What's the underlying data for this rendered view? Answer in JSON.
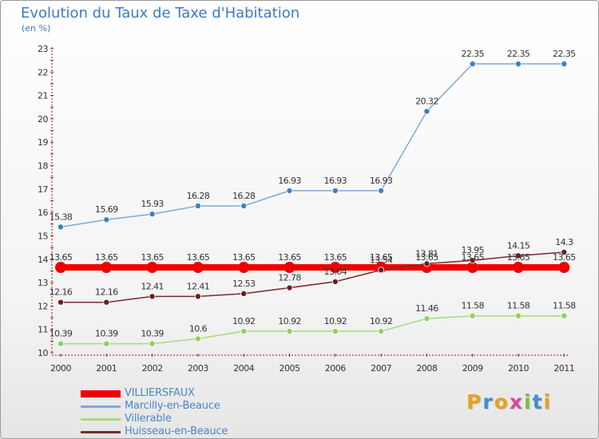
{
  "header": {
    "title": "Evolution du Taux de Taxe d'Habitation",
    "subtitle": "(en %)"
  },
  "logo": {
    "text": "Proxiti",
    "colors": [
      "#e8a21a",
      "#3c8fd6",
      "#e8a21a",
      "#d64a8f",
      "#7cc042",
      "#3c8fd6",
      "#e8a21a"
    ]
  },
  "chart_data": {
    "type": "line",
    "title": "Evolution du Taux de Taxe d'Habitation",
    "subtitle": "(en %)",
    "xlabel": "",
    "ylabel": "",
    "categories": [
      "2000",
      "2001",
      "2002",
      "2003",
      "2004",
      "2005",
      "2006",
      "2007",
      "2008",
      "2009",
      "2010",
      "2011"
    ],
    "ylim": [
      10,
      23
    ],
    "yticks": [
      10,
      11,
      12,
      13,
      14,
      15,
      16,
      17,
      18,
      19,
      20,
      21,
      22,
      23
    ],
    "grid": false,
    "legend_position": "bottom-left",
    "series": [
      {
        "name": "VILLIERSFAUX",
        "color": "#ee0000",
        "point_color": "#ee0000",
        "thick": true,
        "values": [
          13.65,
          13.65,
          13.65,
          13.65,
          13.65,
          13.65,
          13.65,
          13.65,
          13.65,
          13.65,
          13.65,
          13.65
        ],
        "labels": [
          "13.65",
          "13.65",
          "13.65",
          "13.65",
          "13.65",
          "13.65",
          "13.65",
          "13.65",
          "13.65",
          "13.65",
          "13.65",
          "13.65"
        ]
      },
      {
        "name": "Marcilly-en-Beauce",
        "color": "#7fa9d6",
        "point_color": "#3b82c4",
        "thick": false,
        "values": [
          15.38,
          15.69,
          15.93,
          16.28,
          16.28,
          16.93,
          16.93,
          16.93,
          20.32,
          22.35,
          22.35,
          22.35
        ],
        "labels": [
          "15.38",
          "15.69",
          "15.93",
          "16.28",
          "16.28",
          "16.93",
          "16.93",
          "16.93",
          "20.32",
          "22.35",
          "22.35",
          "22.35"
        ]
      },
      {
        "name": "Villerable",
        "color": "#a6dc7a",
        "point_color": "#8fd05a",
        "thick": false,
        "values": [
          10.39,
          10.39,
          10.39,
          10.6,
          10.92,
          10.92,
          10.92,
          10.92,
          11.46,
          11.58,
          11.58,
          11.58
        ],
        "labels": [
          "10.39",
          "10.39",
          "10.39",
          "10.6",
          "10.92",
          "10.92",
          "10.92",
          "10.92",
          "11.46",
          "11.58",
          "11.58",
          "11.58"
        ]
      },
      {
        "name": "Huisseau-en-Beauce",
        "color": "#7a2a2a",
        "point_color": "#6a1f1f",
        "thick": false,
        "values": [
          12.16,
          12.16,
          12.41,
          12.41,
          12.53,
          12.78,
          13.04,
          13.54,
          13.81,
          13.95,
          14.15,
          14.3
        ],
        "labels": [
          "12.16",
          "12.16",
          "12.41",
          "12.41",
          "12.53",
          "12.78",
          "13.04",
          "13.54",
          "13.81",
          "13.95",
          "14.15",
          "14.3"
        ]
      }
    ]
  }
}
